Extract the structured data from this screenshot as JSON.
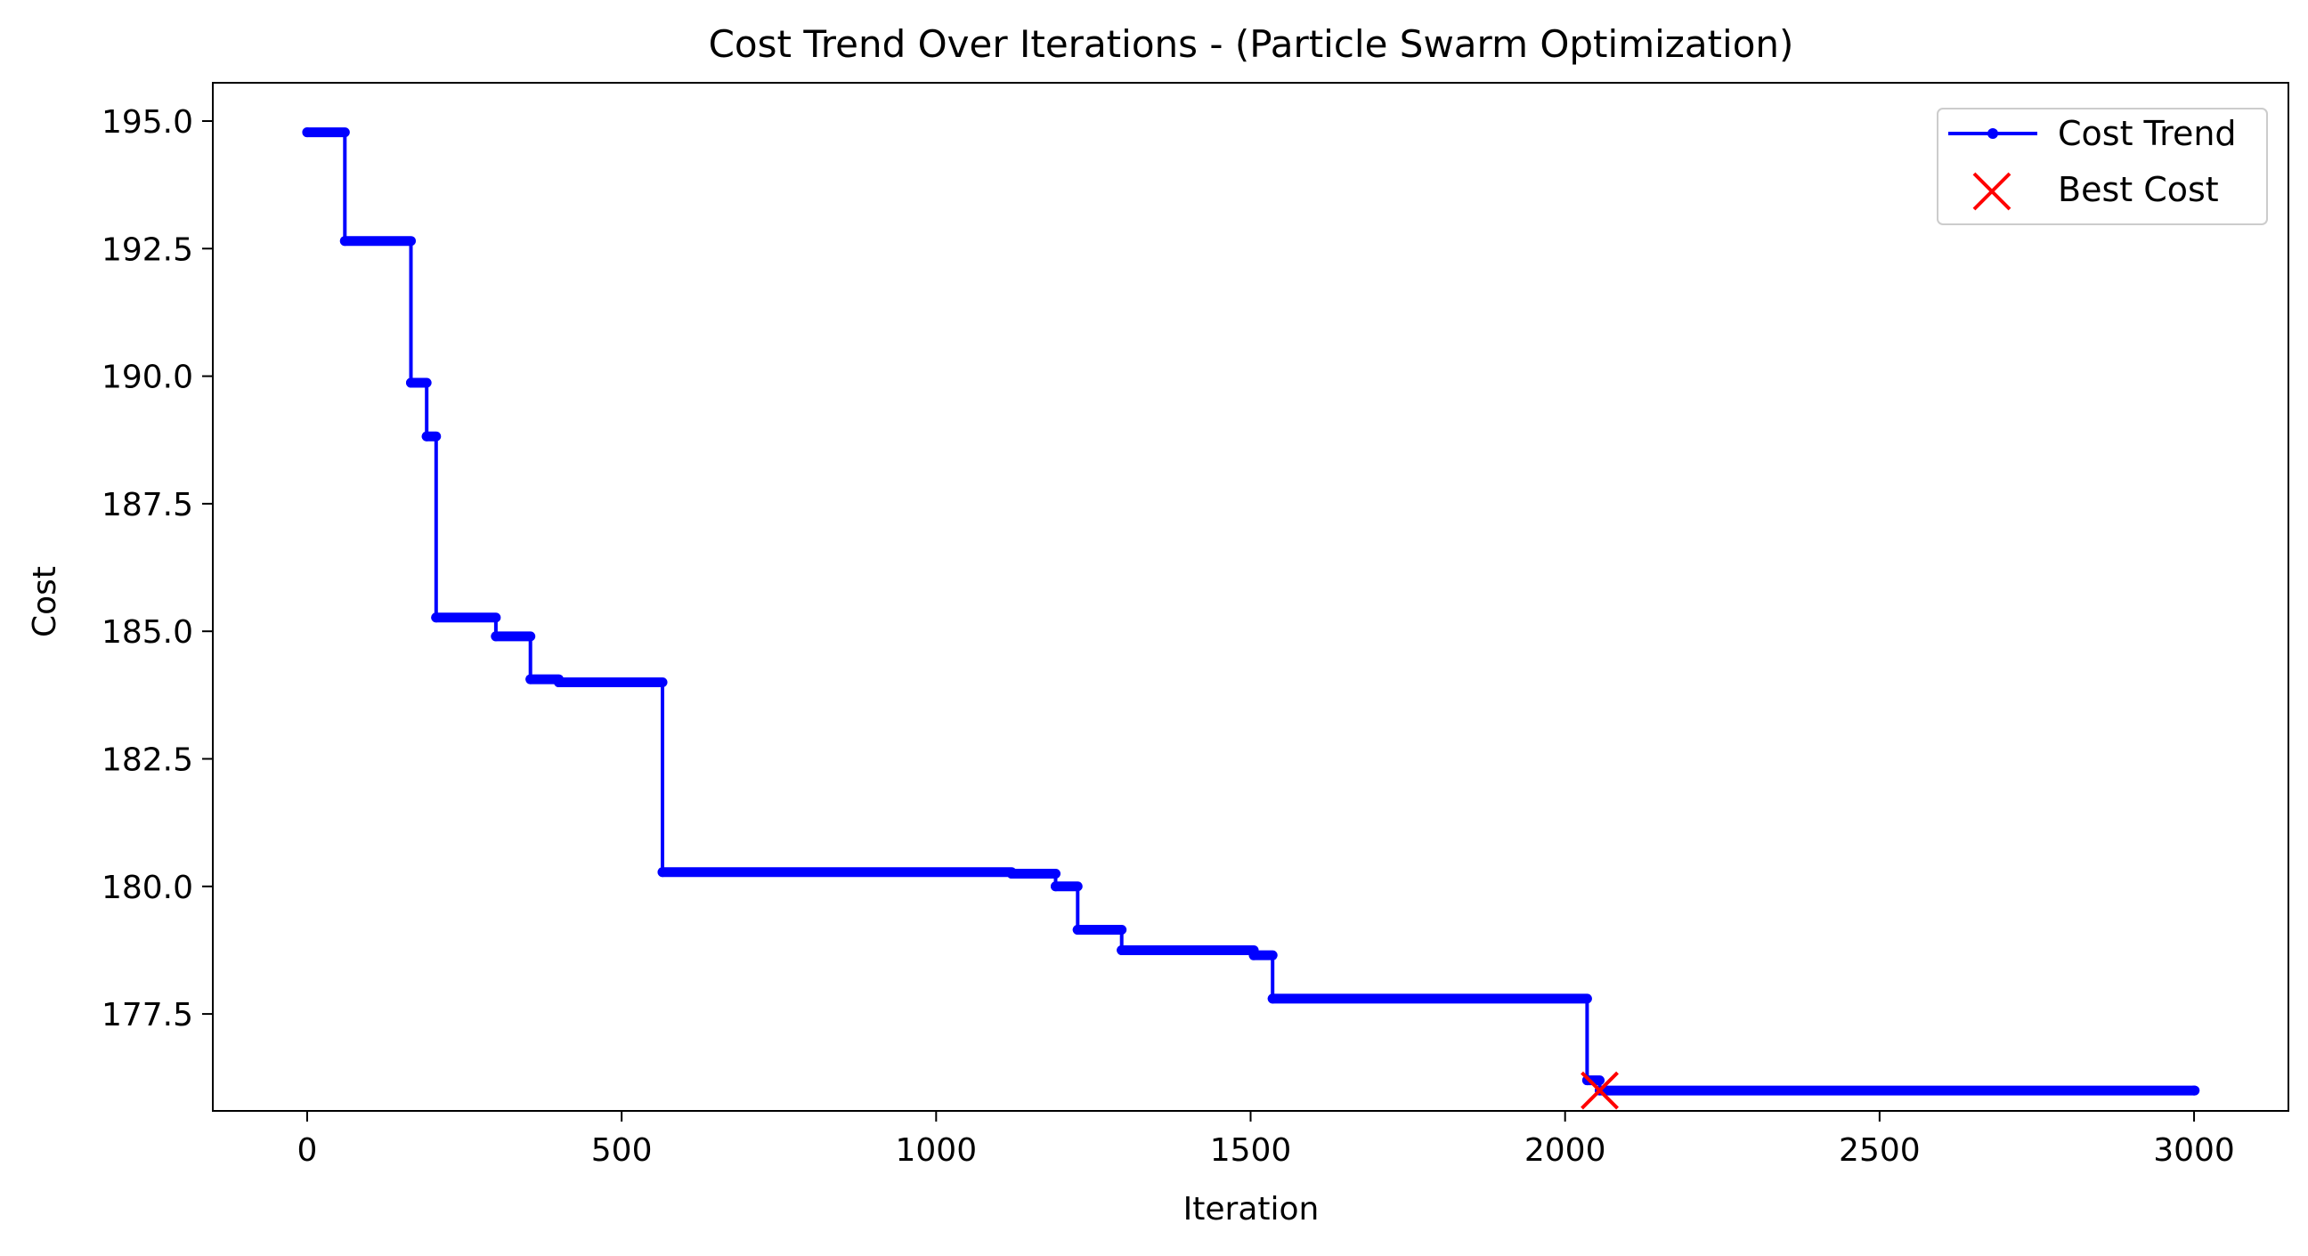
{
  "chart_data": {
    "type": "line",
    "title": "Cost Trend Over Iterations - (Particle Swarm Optimization)",
    "xlabel": "Iteration",
    "ylabel": "Cost",
    "xlim": [
      -150,
      3150
    ],
    "ylim": [
      175.6,
      195.75
    ],
    "xticks": [
      0,
      500,
      1000,
      1500,
      2000,
      2500,
      3000
    ],
    "xtick_labels": [
      "0",
      "500",
      "1000",
      "1500",
      "2000",
      "2500",
      "3000"
    ],
    "yticks": [
      177.5,
      180.0,
      182.5,
      185.0,
      187.5,
      190.0,
      192.5,
      195.0
    ],
    "ytick_labels": [
      "177.5",
      "180.0",
      "182.5",
      "185.0",
      "187.5",
      "190.0",
      "192.5",
      "195.0"
    ],
    "grid": false,
    "legend_position": "top-right",
    "series": [
      {
        "name": "Cost Trend",
        "style": "step line with dot markers",
        "color": "#0000ff",
        "x": [
          0,
          60,
          165,
          190,
          205,
          300,
          355,
          400,
          565,
          1120,
          1190,
          1225,
          1295,
          1505,
          1535,
          2035,
          2055,
          3000
        ],
        "y": [
          194.78,
          192.65,
          189.87,
          188.82,
          185.27,
          184.9,
          184.06,
          184.0,
          180.28,
          180.25,
          180.0,
          179.15,
          178.75,
          178.65,
          177.8,
          176.2,
          176.0,
          176.0
        ]
      },
      {
        "name": "Best Cost",
        "style": "scatter x marker",
        "color": "#ff0000",
        "x": [
          2055
        ],
        "y": [
          176.0
        ]
      }
    ]
  }
}
